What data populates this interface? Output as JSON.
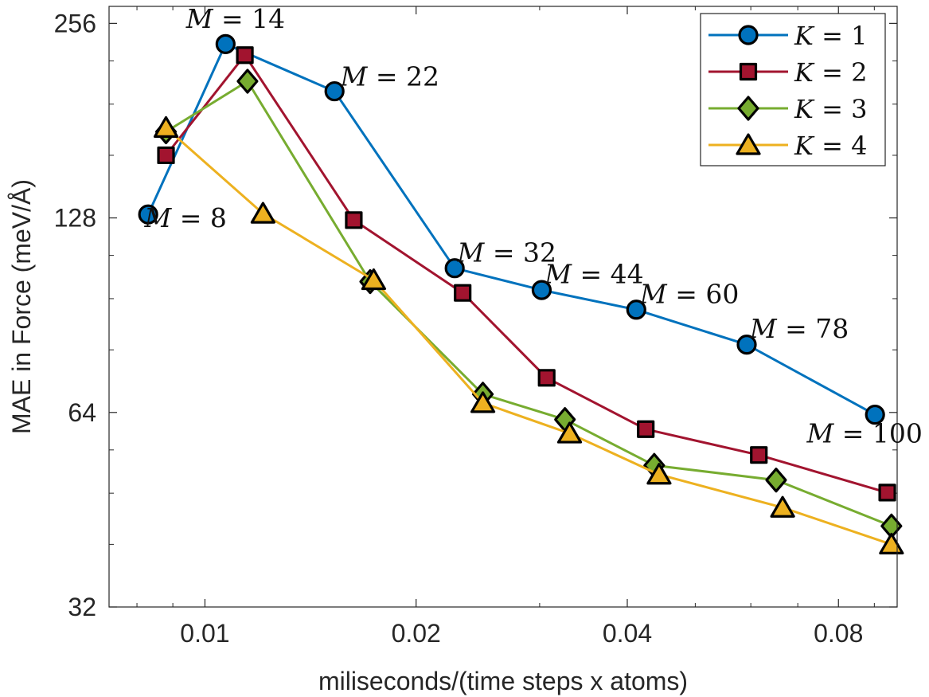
{
  "chart_data": {
    "type": "line",
    "xscale": "log",
    "yscale": "log",
    "xlabel": "miliseconds/(time steps x atoms)",
    "ylabel": "MAE in Force (meV/Å)",
    "xlim": [
      0.0073,
      0.097
    ],
    "ylim": [
      32,
      272
    ],
    "xticks": [
      0.01,
      0.02,
      0.04,
      0.08
    ],
    "xtick_labels": [
      "0.01",
      "0.02",
      "0.04",
      "0.08"
    ],
    "yticks": [
      32,
      64,
      128,
      256
    ],
    "ytick_labels": [
      "32",
      "64",
      "128",
      "256"
    ],
    "legend_position": "top-right",
    "series": [
      {
        "name": "K = 1",
        "var": "K",
        "num": "1",
        "color": "#0072BD",
        "marker": "circle",
        "x": [
          0.0083,
          0.0107,
          0.0153,
          0.0227,
          0.0302,
          0.0412,
          0.0592,
          0.0902
        ],
        "y": [
          129.6,
          237.8,
          201.0,
          107.0,
          99.0,
          92.3,
          81.5,
          63.5
        ]
      },
      {
        "name": "K = 2",
        "var": "K",
        "num": "2",
        "color": "#A2142F",
        "marker": "square",
        "x": [
          0.0088,
          0.0114,
          0.0163,
          0.0233,
          0.0307,
          0.0425,
          0.0616,
          0.0939
        ],
        "y": [
          160.0,
          228.6,
          127.0,
          98.0,
          72.4,
          60.3,
          55.0,
          48.1
        ]
      },
      {
        "name": "K = 3",
        "var": "K",
        "num": "3",
        "color": "#77AC30",
        "marker": "diamond",
        "x": [
          0.0088,
          0.0115,
          0.0172,
          0.0249,
          0.0326,
          0.0437,
          0.0652,
          0.0952
        ],
        "y": [
          174.0,
          208.3,
          102.0,
          68.3,
          62.4,
          53.0,
          50.3,
          42.7
        ]
      },
      {
        "name": "K = 4",
        "var": "K",
        "num": "4",
        "color": "#EDB120",
        "marker": "triangle",
        "x": [
          0.0088,
          0.0121,
          0.0174,
          0.0249,
          0.0331,
          0.0444,
          0.0666,
          0.0952
        ],
        "y": [
          176.5,
          130.0,
          102.6,
          66.2,
          59.4,
          51.3,
          45.6,
          40.0
        ]
      }
    ],
    "annotations": [
      {
        "var": "M",
        "num": "8",
        "x": 0.0082,
        "y": 124.0,
        "anchor": "start"
      },
      {
        "var": "M",
        "num": "14",
        "x": 0.0094,
        "y": 252.0,
        "anchor": "start"
      },
      {
        "var": "M",
        "num": "22",
        "x": 0.0156,
        "y": 205.0,
        "anchor": "start"
      },
      {
        "var": "M",
        "num": "32",
        "x": 0.0229,
        "y": 109.5,
        "anchor": "start"
      },
      {
        "var": "M",
        "num": "44",
        "x": 0.0305,
        "y": 101.5,
        "anchor": "start"
      },
      {
        "var": "M",
        "num": "60",
        "x": 0.0417,
        "y": 94.5,
        "anchor": "start"
      },
      {
        "var": "M",
        "num": "78",
        "x": 0.0598,
        "y": 83.5,
        "anchor": "start"
      },
      {
        "var": "M",
        "num": "100",
        "x": 0.0721,
        "y": 57.5,
        "anchor": "start"
      }
    ]
  }
}
